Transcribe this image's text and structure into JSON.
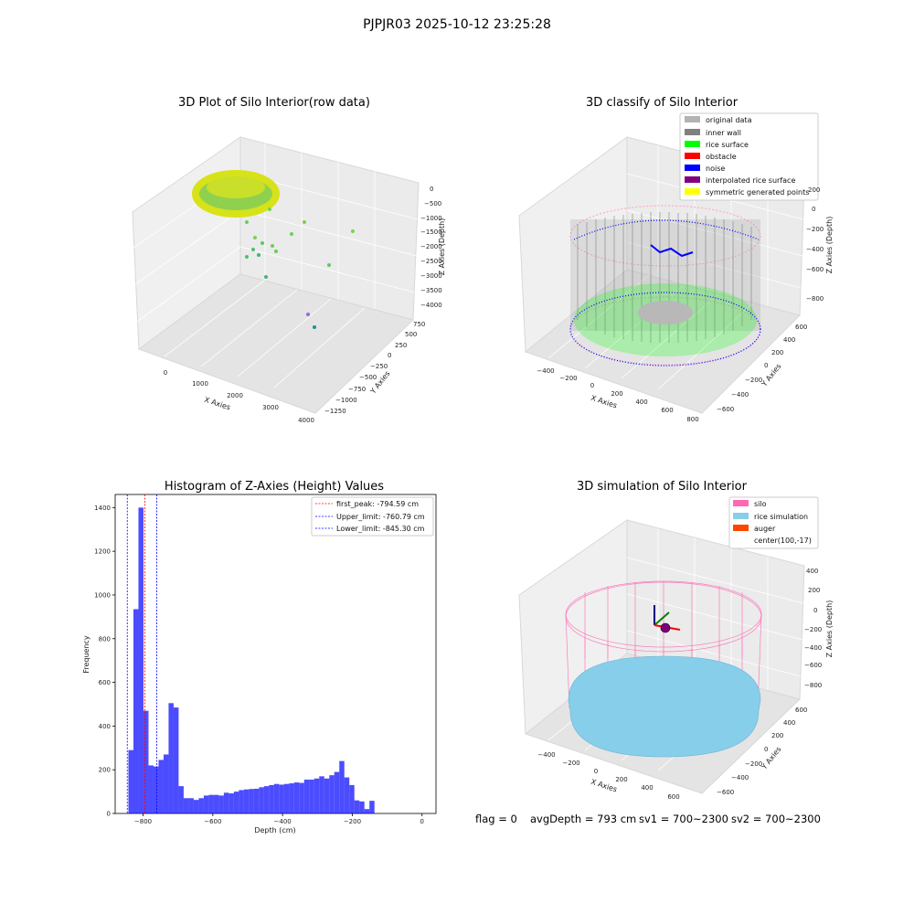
{
  "figure": {
    "suptitle": "PJPJR03 2025-10-12 23:25:28",
    "footer": {
      "flag": "flag = 0",
      "avg_depth": "avgDepth = 793 cm",
      "sv1": "sv1 = 700~2300",
      "sv2": "sv2 = 700~2300"
    }
  },
  "chart_data": [
    {
      "type": "scatter3d",
      "title": "3D Plot of Silo Interior(row data)",
      "xlabel": "X Axies",
      "ylabel": "Y Axies",
      "zlabel": "Z Axies (Depth)",
      "xticks": [
        "0",
        "1000",
        "2000",
        "3000",
        "4000"
      ],
      "yticks": [
        "−1250",
        "−1000",
        "−750",
        "−500",
        "−250",
        "0",
        "250",
        "500",
        "750"
      ],
      "zticks": [
        "0",
        "−500",
        "−1000",
        "−1500",
        "−2000",
        "−2500",
        "−3000",
        "−3500",
        "−4000"
      ],
      "colormap": "viridis"
    },
    {
      "type": "scatter3d",
      "title": "3D classify of Silo Interior",
      "xlabel": "X Axies",
      "ylabel": "Y Axies",
      "zlabel": "Z Axies (Depth)",
      "xticks": [
        "−400",
        "−200",
        "0",
        "200",
        "400",
        "600",
        "800"
      ],
      "yticks": [
        "−600",
        "−400",
        "−200",
        "0",
        "200",
        "400",
        "600"
      ],
      "zticks": [
        "200",
        "0",
        "−200",
        "−400",
        "−600",
        "−800"
      ],
      "legend": [
        {
          "label": "original data",
          "color": "#b3b3b3"
        },
        {
          "label": "inner wall",
          "color": "#808080"
        },
        {
          "label": "rice surface",
          "color": "#00ff00"
        },
        {
          "label": "obstacle",
          "color": "#ff0000"
        },
        {
          "label": "noise",
          "color": "#0000ff"
        },
        {
          "label": "interpolated rice surface",
          "color": "#800080"
        },
        {
          "label": "symmetric generated points",
          "color": "#ffff00"
        }
      ]
    },
    {
      "type": "histogram",
      "title": "Histogram of Z-Axies (Height) Values",
      "xlabel": "Depth (cm)",
      "ylabel": "Frequency",
      "xlim": [
        -880,
        40
      ],
      "ylim": [
        0,
        1460
      ],
      "xticks": [
        -800,
        -600,
        -400,
        -200,
        0
      ],
      "yticks": [
        0,
        200,
        400,
        600,
        800,
        1000,
        1200,
        1400
      ],
      "bar_color": "#0000ff",
      "bin_width": 14.4,
      "bin_start": -842,
      "values": [
        290,
        935,
        1400,
        470,
        220,
        215,
        245,
        270,
        505,
        485,
        125,
        70,
        70,
        62,
        70,
        82,
        85,
        85,
        82,
        95,
        92,
        100,
        107,
        110,
        112,
        113,
        120,
        125,
        130,
        135,
        132,
        135,
        138,
        142,
        140,
        155,
        155,
        160,
        170,
        160,
        175,
        190,
        240,
        165,
        130,
        60,
        55,
        20,
        58
      ],
      "vlines": [
        {
          "label": "first_peak: -794.59 cm",
          "x": -794.59,
          "color": "#ff0000"
        },
        {
          "label": "Upper_limit: -760.79 cm",
          "x": -760.79,
          "color": "#0000ff"
        },
        {
          "label": "Lower_limit: -845.30 cm",
          "x": -845.3,
          "color": "#0000ff"
        }
      ]
    },
    {
      "type": "surface3d",
      "title": "3D simulation of Silo Interior",
      "xlabel": "X Axies",
      "ylabel": "Y Axies",
      "zlabel": "Z Axies (Depth)",
      "xticks": [
        "−400",
        "−200",
        "0",
        "200",
        "400",
        "600"
      ],
      "yticks": [
        "−600",
        "−400",
        "−200",
        "0",
        "200",
        "400",
        "600"
      ],
      "zticks": [
        "400",
        "200",
        "0",
        "−200",
        "−400",
        "−600",
        "−800"
      ],
      "legend": [
        {
          "label": "silo",
          "color": "#ff69b4"
        },
        {
          "label": "rice simulation",
          "color": "#87ceeb"
        },
        {
          "label": "auger",
          "color": "#ff4500"
        },
        {
          "label": "center(100,-17)",
          "color": ""
        }
      ]
    }
  ]
}
